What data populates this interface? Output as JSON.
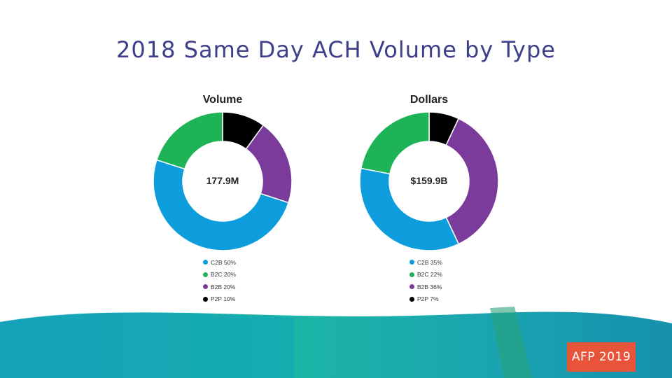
{
  "title": "2018 Same Day ACH Volume by Type",
  "colors": {
    "C2B": "#0d9ddc",
    "B2C": "#1db356",
    "B2B": "#7b3b9b",
    "P2P": "#000000",
    "title": "#3d3f8a",
    "logo_bg": "#e7543a"
  },
  "chart_data": [
    {
      "type": "pie",
      "title": "Volume",
      "center_label": "177.9M",
      "slices": [
        {
          "name": "C2B",
          "value": 50,
          "label": "C2B 50%"
        },
        {
          "name": "B2C",
          "value": 20,
          "label": "B2C 20%"
        },
        {
          "name": "B2B",
          "value": 20,
          "label": "B2B 20%"
        },
        {
          "name": "P2P",
          "value": 10,
          "label": "P2P 10%"
        }
      ]
    },
    {
      "type": "pie",
      "title": "Dollars",
      "center_label": "$159.9B",
      "slices": [
        {
          "name": "C2B",
          "value": 35,
          "label": "C2B 35%"
        },
        {
          "name": "B2C",
          "value": 22,
          "label": "B2C 22%"
        },
        {
          "name": "B2B",
          "value": 36,
          "label": "B2B 36%"
        },
        {
          "name": "P2P",
          "value": 7,
          "label": "P2P 7%"
        }
      ]
    }
  ],
  "logo_text": "AFP 2019"
}
